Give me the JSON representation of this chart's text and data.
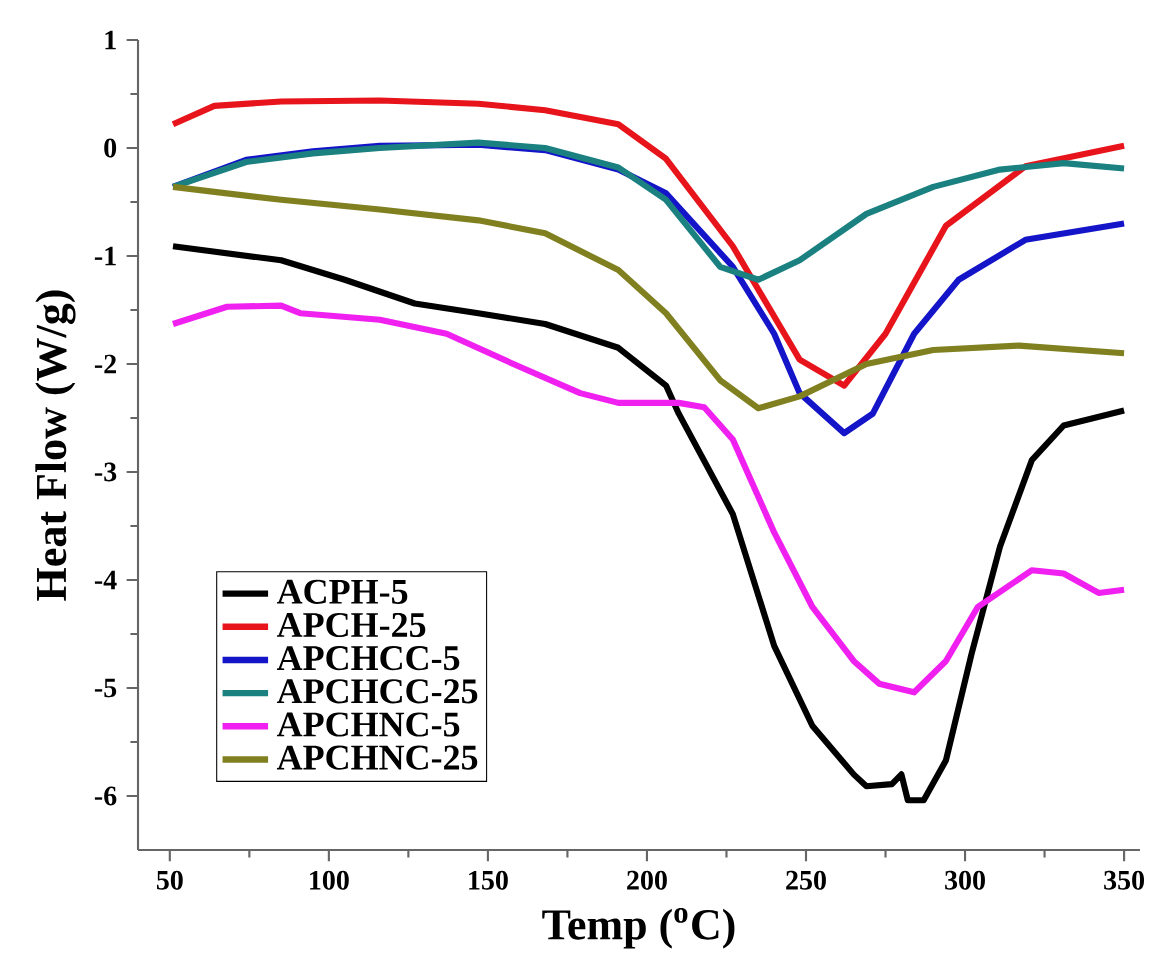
{
  "chart_data": {
    "type": "line",
    "xlabel": "Temp ($^{o}$C)",
    "ylabel": "Heat Flow (W/g)",
    "xlim": [
      40,
      355
    ],
    "ylim": [
      -6.5,
      1
    ],
    "xticks": [
      50,
      100,
      150,
      200,
      250,
      300,
      350
    ],
    "yticks": [
      -6,
      -5,
      -4,
      -3,
      -2,
      -1,
      0,
      1
    ],
    "legend": "bottom left",
    "grid": false,
    "marker": "none",
    "line_style": "solid",
    "series": [
      {
        "name": "ACPH-5",
        "color": "#000000",
        "x": [
          51,
          85,
          105,
          127,
          147,
          168,
          191,
          206,
          210,
          227,
          240,
          252,
          265,
          269,
          277,
          280,
          282,
          287,
          294,
          302,
          311,
          321,
          331,
          350
        ],
        "values": [
          -0.91,
          -1.04,
          -1.22,
          -1.44,
          -1.53,
          -1.63,
          -1.85,
          -2.2,
          -2.46,
          -3.39,
          -4.61,
          -5.35,
          -5.8,
          -5.91,
          -5.89,
          -5.8,
          -6.04,
          -6.04,
          -5.67,
          -4.69,
          -3.69,
          -2.89,
          -2.57,
          -2.43
        ]
      },
      {
        "name": "APCH-25",
        "color": "#e8141c",
        "x": [
          51,
          64,
          85,
          116,
          147,
          168,
          191,
          206,
          227,
          248,
          262,
          275,
          294,
          319,
          350
        ],
        "values": [
          0.22,
          0.39,
          0.43,
          0.44,
          0.41,
          0.35,
          0.22,
          -0.1,
          -0.91,
          -1.96,
          -2.2,
          -1.72,
          -0.72,
          -0.17,
          0.02
        ]
      },
      {
        "name": "APCHCC-5",
        "color": "#1414c8",
        "x": [
          51,
          74,
          95,
          116,
          147,
          168,
          191,
          206,
          227,
          240,
          248,
          262,
          271,
          284,
          298,
          319,
          350
        ],
        "values": [
          -0.36,
          -0.11,
          -0.03,
          0.02,
          0.03,
          -0.02,
          -0.2,
          -0.42,
          -1.1,
          -1.72,
          -2.27,
          -2.64,
          -2.46,
          -1.72,
          -1.22,
          -0.85,
          -0.7
        ]
      },
      {
        "name": "APCHCC-25",
        "color": "#1a8080",
        "x": [
          51,
          74,
          95,
          116,
          147,
          168,
          191,
          206,
          223,
          235,
          248,
          269,
          290,
          311,
          331,
          350
        ],
        "values": [
          -0.36,
          -0.13,
          -0.05,
          0.0,
          0.05,
          0.0,
          -0.18,
          -0.48,
          -1.1,
          -1.22,
          -1.04,
          -0.61,
          -0.36,
          -0.2,
          -0.14,
          -0.19
        ]
      },
      {
        "name": "APCHNC-5",
        "color": "#f020f0",
        "x": [
          51,
          68,
          85,
          91,
          116,
          137,
          158,
          179,
          191,
          210,
          218,
          227,
          240,
          252,
          265,
          273,
          284,
          294,
          304,
          321,
          331,
          342,
          350
        ],
        "values": [
          -1.63,
          -1.47,
          -1.46,
          -1.53,
          -1.59,
          -1.72,
          -2.0,
          -2.27,
          -2.36,
          -2.36,
          -2.4,
          -2.7,
          -3.56,
          -4.25,
          -4.75,
          -4.96,
          -5.04,
          -4.75,
          -4.25,
          -3.91,
          -3.94,
          -4.12,
          -4.09
        ]
      },
      {
        "name": "APCHNC-25",
        "color": "#808020",
        "x": [
          51,
          85,
          116,
          147,
          168,
          191,
          206,
          223,
          235,
          248,
          269,
          290,
          317,
          350
        ],
        "values": [
          -0.36,
          -0.48,
          -0.57,
          -0.67,
          -0.79,
          -1.13,
          -1.53,
          -2.15,
          -2.41,
          -2.3,
          -2.0,
          -1.87,
          -1.83,
          -1.9
        ]
      }
    ]
  }
}
